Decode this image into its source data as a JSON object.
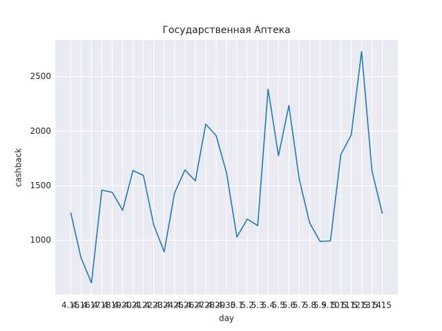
{
  "chart_data": {
    "type": "line",
    "title": "Государственная Аптека",
    "x_label": "day",
    "y_label": "cashback",
    "categories": [
      "4.15",
      "4.16",
      "4.17",
      "4.18",
      "4.19",
      "4.20",
      "4.21",
      "4.22",
      "4.23",
      "4.24",
      "4.25",
      "4.26",
      "4.27",
      "4.28",
      "4.29",
      "4.30",
      "5.1",
      "5.2",
      "5.3",
      "5.4",
      "5.5",
      "5.6",
      "5.7",
      "5.8",
      "5.9",
      "5.10",
      "5.11",
      "5.12",
      "5.13",
      "5.14",
      "5.15"
    ],
    "series": [
      {
        "name": "cashback",
        "color": "#1f77b4",
        "values": [
          1255,
          840,
          610,
          1460,
          1440,
          1275,
          1640,
          1595,
          1140,
          895,
          1435,
          1645,
          1545,
          2065,
          1960,
          1620,
          1030,
          1195,
          1135,
          2385,
          1775,
          2235,
          1560,
          1160,
          990,
          995,
          1785,
          1965,
          2730,
          1635,
          1245
        ]
      }
    ],
    "ylim": [
      504,
      2836
    ],
    "yticks": [
      1000,
      1500,
      2000,
      2500
    ],
    "grid": true
  }
}
